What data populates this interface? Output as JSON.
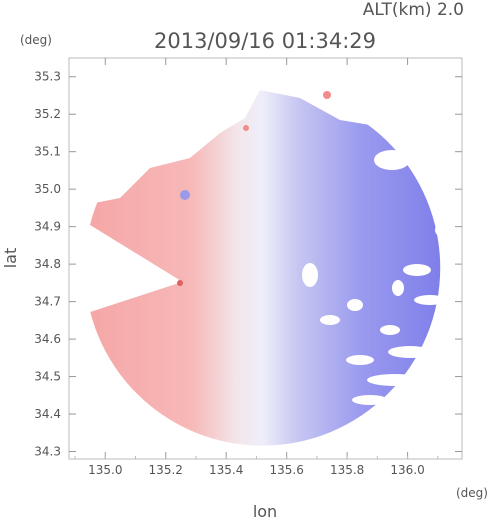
{
  "header": {
    "altitude_label": "ALT(km) 2.0",
    "timestamp": "2013/09/16 01:34:29"
  },
  "chart_data": {
    "type": "heatmap",
    "title": "2013/09/16 01:34:29",
    "subtitle": "ALT(km) 2.0",
    "xlabel": "lon",
    "ylabel": "lat",
    "x_unit": "(deg)",
    "y_unit": "(deg)",
    "xlim": [
      134.88,
      136.18
    ],
    "ylim": [
      34.28,
      35.35
    ],
    "x_ticks": [
      135.0,
      135.2,
      135.4,
      135.6,
      135.8,
      136.0
    ],
    "x_tick_labels": [
      "135.0",
      "135.2",
      "135.4",
      "135.6",
      "135.8",
      "136.0"
    ],
    "y_ticks": [
      34.3,
      34.4,
      34.5,
      34.6,
      34.7,
      34.8,
      34.9,
      35.0,
      35.1,
      35.2,
      35.3
    ],
    "y_tick_labels": [
      "34.3",
      "34.4",
      "34.5",
      "34.6",
      "34.7",
      "34.8",
      "34.9",
      "35.0",
      "35.1",
      "35.2",
      "35.3"
    ],
    "radar_center": {
      "lon": 135.52,
      "lat": 34.79
    },
    "radar_range_deg": 0.6,
    "colors": {
      "receding": "#f6a0a0",
      "approaching": "#8080ee",
      "zero": "#f5f5f8"
    },
    "grid": false
  }
}
